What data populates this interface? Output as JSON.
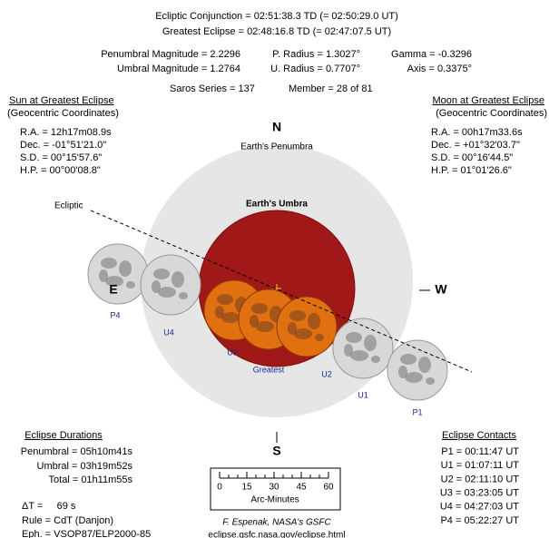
{
  "header": {
    "conjunction": "Ecliptic Conjunction = 02:51:38.3 TD   (= 02:50:29.0 UT)",
    "greatest": "Greatest Eclipse = 02:48:16.8 TD   (= 02:47:07.5 UT)",
    "penumbral_magnitude": "Penumbral Magnitude = 2.2296",
    "p_radius": "P. Radius = 1.3027°",
    "gamma": "Gamma = -0.3296",
    "umbral_magnitude": "Umbral Magnitude = 1.2764",
    "u_radius": "U. Radius = 0.7707°",
    "axis": "Axis = 0.3375°",
    "saros": "Saros Series = 137",
    "member": "Member = 28 of 81"
  },
  "sun": {
    "title": "Sun at Greatest Eclipse",
    "subtitle": "(Geocentric Coordinates)",
    "lines": [
      "R.A. =  12h17m08.9s",
      "Dec. = -01°51'21.0\"",
      "S.D. =  00°15'57.6\"",
      "H.P. =  00°00'08.8\""
    ]
  },
  "moon": {
    "title": "Moon at Greatest Eclipse",
    "subtitle": "(Geocentric Coordinates)",
    "lines": [
      "R.A. =  00h17m33.6s",
      "Dec. = +01°32'03.7\"",
      "S.D. =  00°16'44.5\"",
      "H.P. =  01°01'26.6\""
    ]
  },
  "diagram": {
    "north": "N",
    "south": "S",
    "east": "E",
    "west": "W",
    "penumbra": "Earth's Penumbra",
    "umbra": "Earth's Umbra",
    "ecliptic": "Ecliptic",
    "positions": [
      "P4",
      "U4",
      "U3",
      "Greatest",
      "U2",
      "U1",
      "P1"
    ]
  },
  "durations": {
    "title": "Eclipse Durations",
    "lines": [
      "Penumbral = 05h10m41s",
      "Umbral = 03h19m52s",
      "Total = 01h11m55s"
    ],
    "delta_t": "ΔT =     69 s",
    "rule": "Rule = CdT (Danjon)",
    "eph": "Eph. = VSOP87/ELP2000-85"
  },
  "scale": {
    "ticks": [
      "0",
      "15",
      "30",
      "45",
      "60"
    ],
    "label": "Arc-Minutes"
  },
  "credit": {
    "author": "F. Espenak, NASA's GSFC",
    "url": "eclipse.gsfc.nasa.gov/eclipse.html"
  },
  "contacts": {
    "title": "Eclipse Contacts",
    "lines": [
      "P1 = 00:11:47 UT",
      "U1 = 01:07:11 UT",
      "U2 = 02:11:10 UT",
      "U3 = 03:23:05 UT",
      "U4 = 04:27:03 UT",
      "P4 = 05:22:27 UT"
    ]
  }
}
